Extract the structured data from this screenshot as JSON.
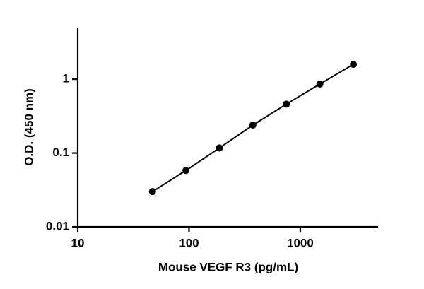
{
  "chart_data": {
    "type": "scatter",
    "x_label": "Mouse VEGF R3 (pg/mL)",
    "y_label": "O.D. (450 nm)",
    "x": [
      46.9,
      93.8,
      187.5,
      375,
      750,
      1500,
      3000
    ],
    "series": [
      {
        "color": "#000000",
        "values": [
          0.03,
          0.058,
          0.117,
          0.239,
          0.46,
          0.86,
          1.59
        ]
      }
    ],
    "connect": true,
    "xscale": "log",
    "yscale": "log",
    "xlim": [
      10,
      5000
    ],
    "ylim": [
      0.01,
      4.9
    ],
    "xticks": [
      10,
      100,
      1000
    ],
    "yticks": [
      0.01,
      0.1,
      1
    ],
    "grid": false
  }
}
